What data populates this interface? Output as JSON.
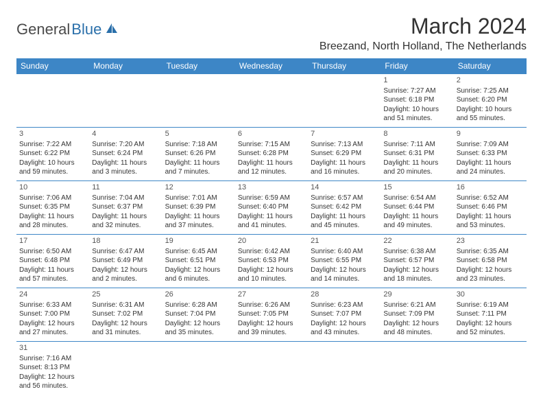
{
  "logo": {
    "word1": "General",
    "word2": "Blue"
  },
  "title": "March 2024",
  "location": "Breezand, North Holland, The Netherlands",
  "colors": {
    "header_bg": "#3d86c6",
    "header_fg": "#ffffff",
    "cell_border": "#3d86c6",
    "text": "#333333",
    "logo_gray": "#4a4a4a",
    "logo_blue": "#2a6faa"
  },
  "day_headers": [
    "Sunday",
    "Monday",
    "Tuesday",
    "Wednesday",
    "Thursday",
    "Friday",
    "Saturday"
  ],
  "weeks": [
    [
      null,
      null,
      null,
      null,
      null,
      {
        "n": "1",
        "sr": "Sunrise: 7:27 AM",
        "ss": "Sunset: 6:18 PM",
        "dl1": "Daylight: 10 hours",
        "dl2": "and 51 minutes."
      },
      {
        "n": "2",
        "sr": "Sunrise: 7:25 AM",
        "ss": "Sunset: 6:20 PM",
        "dl1": "Daylight: 10 hours",
        "dl2": "and 55 minutes."
      }
    ],
    [
      {
        "n": "3",
        "sr": "Sunrise: 7:22 AM",
        "ss": "Sunset: 6:22 PM",
        "dl1": "Daylight: 10 hours",
        "dl2": "and 59 minutes."
      },
      {
        "n": "4",
        "sr": "Sunrise: 7:20 AM",
        "ss": "Sunset: 6:24 PM",
        "dl1": "Daylight: 11 hours",
        "dl2": "and 3 minutes."
      },
      {
        "n": "5",
        "sr": "Sunrise: 7:18 AM",
        "ss": "Sunset: 6:26 PM",
        "dl1": "Daylight: 11 hours",
        "dl2": "and 7 minutes."
      },
      {
        "n": "6",
        "sr": "Sunrise: 7:15 AM",
        "ss": "Sunset: 6:28 PM",
        "dl1": "Daylight: 11 hours",
        "dl2": "and 12 minutes."
      },
      {
        "n": "7",
        "sr": "Sunrise: 7:13 AM",
        "ss": "Sunset: 6:29 PM",
        "dl1": "Daylight: 11 hours",
        "dl2": "and 16 minutes."
      },
      {
        "n": "8",
        "sr": "Sunrise: 7:11 AM",
        "ss": "Sunset: 6:31 PM",
        "dl1": "Daylight: 11 hours",
        "dl2": "and 20 minutes."
      },
      {
        "n": "9",
        "sr": "Sunrise: 7:09 AM",
        "ss": "Sunset: 6:33 PM",
        "dl1": "Daylight: 11 hours",
        "dl2": "and 24 minutes."
      }
    ],
    [
      {
        "n": "10",
        "sr": "Sunrise: 7:06 AM",
        "ss": "Sunset: 6:35 PM",
        "dl1": "Daylight: 11 hours",
        "dl2": "and 28 minutes."
      },
      {
        "n": "11",
        "sr": "Sunrise: 7:04 AM",
        "ss": "Sunset: 6:37 PM",
        "dl1": "Daylight: 11 hours",
        "dl2": "and 32 minutes."
      },
      {
        "n": "12",
        "sr": "Sunrise: 7:01 AM",
        "ss": "Sunset: 6:39 PM",
        "dl1": "Daylight: 11 hours",
        "dl2": "and 37 minutes."
      },
      {
        "n": "13",
        "sr": "Sunrise: 6:59 AM",
        "ss": "Sunset: 6:40 PM",
        "dl1": "Daylight: 11 hours",
        "dl2": "and 41 minutes."
      },
      {
        "n": "14",
        "sr": "Sunrise: 6:57 AM",
        "ss": "Sunset: 6:42 PM",
        "dl1": "Daylight: 11 hours",
        "dl2": "and 45 minutes."
      },
      {
        "n": "15",
        "sr": "Sunrise: 6:54 AM",
        "ss": "Sunset: 6:44 PM",
        "dl1": "Daylight: 11 hours",
        "dl2": "and 49 minutes."
      },
      {
        "n": "16",
        "sr": "Sunrise: 6:52 AM",
        "ss": "Sunset: 6:46 PM",
        "dl1": "Daylight: 11 hours",
        "dl2": "and 53 minutes."
      }
    ],
    [
      {
        "n": "17",
        "sr": "Sunrise: 6:50 AM",
        "ss": "Sunset: 6:48 PM",
        "dl1": "Daylight: 11 hours",
        "dl2": "and 57 minutes."
      },
      {
        "n": "18",
        "sr": "Sunrise: 6:47 AM",
        "ss": "Sunset: 6:49 PM",
        "dl1": "Daylight: 12 hours",
        "dl2": "and 2 minutes."
      },
      {
        "n": "19",
        "sr": "Sunrise: 6:45 AM",
        "ss": "Sunset: 6:51 PM",
        "dl1": "Daylight: 12 hours",
        "dl2": "and 6 minutes."
      },
      {
        "n": "20",
        "sr": "Sunrise: 6:42 AM",
        "ss": "Sunset: 6:53 PM",
        "dl1": "Daylight: 12 hours",
        "dl2": "and 10 minutes."
      },
      {
        "n": "21",
        "sr": "Sunrise: 6:40 AM",
        "ss": "Sunset: 6:55 PM",
        "dl1": "Daylight: 12 hours",
        "dl2": "and 14 minutes."
      },
      {
        "n": "22",
        "sr": "Sunrise: 6:38 AM",
        "ss": "Sunset: 6:57 PM",
        "dl1": "Daylight: 12 hours",
        "dl2": "and 18 minutes."
      },
      {
        "n": "23",
        "sr": "Sunrise: 6:35 AM",
        "ss": "Sunset: 6:58 PM",
        "dl1": "Daylight: 12 hours",
        "dl2": "and 23 minutes."
      }
    ],
    [
      {
        "n": "24",
        "sr": "Sunrise: 6:33 AM",
        "ss": "Sunset: 7:00 PM",
        "dl1": "Daylight: 12 hours",
        "dl2": "and 27 minutes."
      },
      {
        "n": "25",
        "sr": "Sunrise: 6:31 AM",
        "ss": "Sunset: 7:02 PM",
        "dl1": "Daylight: 12 hours",
        "dl2": "and 31 minutes."
      },
      {
        "n": "26",
        "sr": "Sunrise: 6:28 AM",
        "ss": "Sunset: 7:04 PM",
        "dl1": "Daylight: 12 hours",
        "dl2": "and 35 minutes."
      },
      {
        "n": "27",
        "sr": "Sunrise: 6:26 AM",
        "ss": "Sunset: 7:05 PM",
        "dl1": "Daylight: 12 hours",
        "dl2": "and 39 minutes."
      },
      {
        "n": "28",
        "sr": "Sunrise: 6:23 AM",
        "ss": "Sunset: 7:07 PM",
        "dl1": "Daylight: 12 hours",
        "dl2": "and 43 minutes."
      },
      {
        "n": "29",
        "sr": "Sunrise: 6:21 AM",
        "ss": "Sunset: 7:09 PM",
        "dl1": "Daylight: 12 hours",
        "dl2": "and 48 minutes."
      },
      {
        "n": "30",
        "sr": "Sunrise: 6:19 AM",
        "ss": "Sunset: 7:11 PM",
        "dl1": "Daylight: 12 hours",
        "dl2": "and 52 minutes."
      }
    ],
    [
      {
        "n": "31",
        "sr": "Sunrise: 7:16 AM",
        "ss": "Sunset: 8:13 PM",
        "dl1": "Daylight: 12 hours",
        "dl2": "and 56 minutes."
      },
      null,
      null,
      null,
      null,
      null,
      null
    ]
  ]
}
